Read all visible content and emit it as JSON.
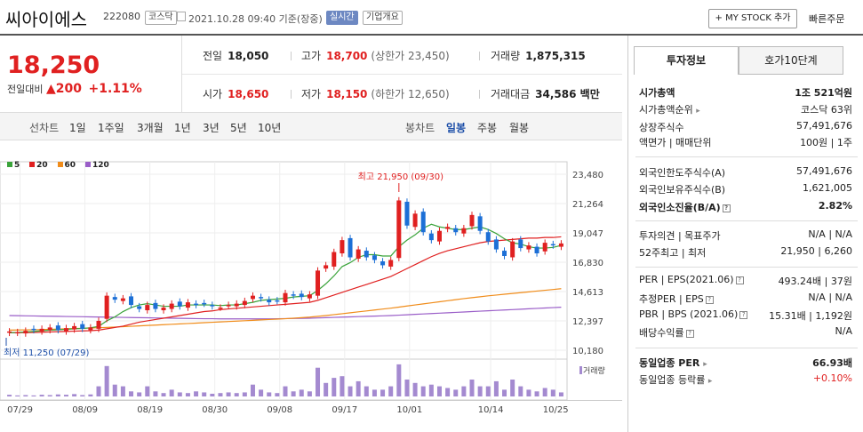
{
  "header": {
    "name": "씨아이에스",
    "code": "222080",
    "market": "코스닥",
    "time": "2021.10.28 09:40  기준(장중)",
    "realtime": "실시간",
    "company": "기업개요",
    "mystock": "+ MY STOCK 추가",
    "quick": "빠른주문"
  },
  "price": {
    "current": "18,250",
    "change_label": "전일대비",
    "change": "▲200",
    "change_pct": "+1.11%"
  },
  "quote": {
    "prev_label": "전일",
    "prev": "18,050",
    "high_label": "고가",
    "high": "18,700",
    "upper_label": "(상한가 23,450)",
    "volume_label": "거래량",
    "volume": "1,875,315",
    "open_label": "시가",
    "open": "18,650",
    "low_label": "저가",
    "low": "18,150",
    "lower_label": "(하한가 12,650)",
    "amount_label": "거래대금",
    "amount": "34,586 백만"
  },
  "periods": {
    "line_label": "선차트",
    "line_items": [
      "1일",
      "1주일",
      "3개월",
      "1년",
      "3년",
      "5년",
      "10년"
    ],
    "candle_label": "봉차트",
    "candle_items": [
      "일봉",
      "주봉",
      "월봉"
    ],
    "active": "일봉"
  },
  "legend": [
    {
      "label": "5",
      "color": "#3aa33a"
    },
    {
      "label": "20",
      "color": "#e02020"
    },
    {
      "label": "60",
      "color": "#f08c1a"
    },
    {
      "label": "120",
      "color": "#9a5ec8"
    }
  ],
  "chart_data": {
    "type": "candlestick",
    "y_ticks": [
      "23,480",
      "21,264",
      "19,047",
      "16,830",
      "14,613",
      "12,397",
      "10,180"
    ],
    "ylim": [
      10180,
      23480
    ],
    "x_ticks": [
      "07/29",
      "08/09",
      "08/19",
      "08/30",
      "09/08",
      "09/17",
      "10/01",
      "10/14",
      "10/25"
    ],
    "high_note": "최고 21,950 (09/30)",
    "low_note": "최저 11,250 (07/29)",
    "volume_label": "거래량",
    "close": [
      11600,
      11550,
      11650,
      11700,
      11800,
      11900,
      11700,
      11850,
      12000,
      11800,
      11900,
      12400,
      14300,
      14000,
      14100,
      13600,
      13300,
      13600,
      13300,
      13400,
      13700,
      13500,
      13800,
      13600,
      13700,
      13500,
      13400,
      13600,
      13700,
      13900,
      14300,
      14100,
      13800,
      13900,
      14500,
      14300,
      14200,
      14400,
      16200,
      16600,
      17600,
      18500,
      17200,
      17800,
      17200,
      17000,
      16600,
      17000,
      21500,
      19600,
      20500,
      19100,
      18500,
      19200,
      19500,
      19100,
      19400,
      20400,
      19200,
      18400,
      17800,
      17300,
      18400,
      17900,
      18100,
      17500,
      18300,
      18100,
      18250
    ],
    "ma5": [
      11500,
      11520,
      11560,
      11600,
      11650,
      11700,
      11720,
      11760,
      11800,
      11820,
      11880,
      11980,
      12400,
      12700,
      13100,
      13400,
      13600,
      13700,
      13600,
      13500,
      13500,
      13500,
      13600,
      13600,
      13600,
      13600,
      13550,
      13600,
      13600,
      13700,
      13800,
      13950,
      14000,
      14050,
      14100,
      14200,
      14250,
      14300,
      14700,
      15200,
      15800,
      16500,
      16800,
      17200,
      17400,
      17400,
      17300,
      17300,
      18000,
      18500,
      18900,
      19400,
      19700,
      19500,
      19400,
      19300,
      19300,
      19400,
      19500,
      19300,
      19000,
      18600,
      18300,
      18200,
      18000,
      17900,
      17900,
      17950,
      18100
    ],
    "ma20": [
      11500,
      11500,
      11510,
      11520,
      11540,
      11560,
      11580,
      11600,
      11620,
      11640,
      11660,
      11700,
      11800,
      11900,
      12000,
      12150,
      12300,
      12400,
      12500,
      12600,
      12700,
      12800,
      12900,
      13000,
      13100,
      13150,
      13250,
      13300,
      13350,
      13400,
      13450,
      13500,
      13550,
      13600,
      13650,
      13700,
      13750,
      13800,
      13950,
      14150,
      14350,
      14550,
      14750,
      14950,
      15150,
      15350,
      15550,
      15750,
      16050,
      16350,
      16650,
      16950,
      17250,
      17500,
      17700,
      17850,
      18000,
      18150,
      18300,
      18400,
      18450,
      18500,
      18550,
      18600,
      18650,
      18650,
      18700,
      18700,
      18750
    ],
    "ma60": [
      11700,
      11710,
      11720,
      11730,
      11740,
      11760,
      11780,
      11800,
      11820,
      11840,
      11860,
      11880,
      11900,
      11930,
      11960,
      11990,
      12020,
      12050,
      12080,
      12110,
      12140,
      12170,
      12200,
      12230,
      12260,
      12290,
      12320,
      12350,
      12380,
      12410,
      12440,
      12470,
      12500,
      12530,
      12560,
      12600,
      12640,
      12680,
      12740,
      12800,
      12870,
      12940,
      13010,
      13080,
      13150,
      13220,
      13290,
      13360,
      13440,
      13520,
      13600,
      13680,
      13760,
      13840,
      13920,
      14000,
      14080,
      14150,
      14220,
      14290,
      14350,
      14410,
      14470,
      14530,
      14590,
      14650,
      14710,
      14770,
      14830
    ],
    "ma120": [
      12800,
      12790,
      12780,
      12770,
      12760,
      12750,
      12740,
      12730,
      12720,
      12710,
      12700,
      12690,
      12680,
      12670,
      12660,
      12650,
      12640,
      12630,
      12620,
      12610,
      12600,
      12590,
      12580,
      12570,
      12560,
      12560,
      12550,
      12550,
      12550,
      12550,
      12550,
      12550,
      12550,
      12560,
      12570,
      12580,
      12590,
      12600,
      12620,
      12640,
      12660,
      12680,
      12700,
      12720,
      12740,
      12760,
      12780,
      12800,
      12830,
      12860,
      12890,
      12920,
      12950,
      12980,
      13010,
      13040,
      13070,
      13100,
      13130,
      13160,
      13190,
      13220,
      13250,
      13280,
      13310,
      13340,
      13370,
      13400,
      13430
    ],
    "volume": [
      0.05,
      0.03,
      0.04,
      0.03,
      0.05,
      0.04,
      0.06,
      0.05,
      0.07,
      0.04,
      0.06,
      0.3,
      0.9,
      0.35,
      0.3,
      0.15,
      0.12,
      0.3,
      0.15,
      0.1,
      0.2,
      0.12,
      0.1,
      0.15,
      0.12,
      0.08,
      0.1,
      0.12,
      0.1,
      0.12,
      0.35,
      0.2,
      0.12,
      0.1,
      0.3,
      0.15,
      0.2,
      0.15,
      0.85,
      0.4,
      0.55,
      0.6,
      0.3,
      0.45,
      0.3,
      0.2,
      0.2,
      0.3,
      0.95,
      0.5,
      0.4,
      0.3,
      0.35,
      0.3,
      0.25,
      0.2,
      0.3,
      0.5,
      0.3,
      0.3,
      0.45,
      0.2,
      0.5,
      0.3,
      0.2,
      0.15,
      0.25,
      0.2,
      0.12
    ]
  },
  "tabs": {
    "invest": "투자정보",
    "hoga": "호가10단계"
  },
  "info": {
    "market_cap_label": "시가총액",
    "market_cap": "1조 521억원",
    "rank_label": "시가총액순위",
    "rank": "코스닥 63위",
    "shares_label": "상장주식수",
    "shares": "57,491,676",
    "face_label": "액면가 | 매매단위",
    "face": "100원 | 1주",
    "foreign_limit_label": "외국인한도주식수(A)",
    "foreign_limit": "57,491,676",
    "foreign_hold_label": "외국인보유주식수(B)",
    "foreign_hold": "1,621,005",
    "foreign_ratio_label": "외국인소진율(B/A)",
    "foreign_ratio": "2.82%",
    "opinion_label": "투자의견 | 목표주가",
    "opinion": "N/A | N/A",
    "w52_label": "52주최고 | 최저",
    "w52": "21,950 | 6,260",
    "per_label": "PER | EPS(2021.06)",
    "per": "493.24배 | 37원",
    "est_per_label": "추정PER | EPS",
    "est_per": "N/A | N/A",
    "pbr_label": "PBR | BPS (2021.06)",
    "pbr": "15.31배 | 1,192원",
    "div_label": "배당수익률",
    "div": "N/A",
    "sector_per_label": "동일업종 PER",
    "sector_per": "66.93배",
    "sector_chg_label": "동일업종 등락률",
    "sector_chg": "+0.10%"
  }
}
